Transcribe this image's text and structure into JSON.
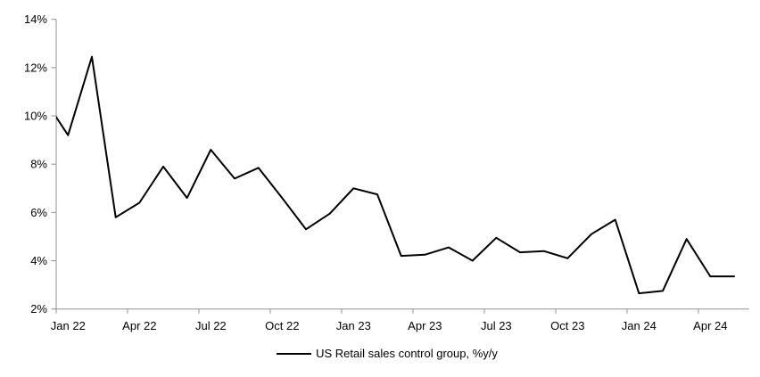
{
  "chart_data": {
    "type": "line",
    "title": "",
    "xlabel": "",
    "ylabel": "",
    "y_unit": "%",
    "legend_label": "US Retail sales control group, %y/y",
    "legend_position": "bottom-center",
    "grid": false,
    "series_color": "#000000",
    "axis_color": "#909090",
    "ylim": [
      2,
      14
    ],
    "y_tick_step": 2,
    "y_tick_labels": [
      "2%",
      "4%",
      "6%",
      "8%",
      "10%",
      "12%",
      "14%"
    ],
    "x_tick_labels": [
      "Jan 22",
      "Apr 22",
      "Jul 22",
      "Oct 22",
      "Jan 23",
      "Apr 23",
      "Jul 23",
      "Oct 23",
      "Jan 24",
      "Apr 24"
    ],
    "x_tick_month_indices": [
      1,
      4,
      7,
      10,
      13,
      16,
      19,
      22,
      25,
      28
    ],
    "x": [
      "Dec 21",
      "Jan 22",
      "Feb 22",
      "Mar 22",
      "Apr 22",
      "May 22",
      "Jun 22",
      "Jul 22",
      "Aug 22",
      "Sep 22",
      "Oct 22",
      "Nov 22",
      "Dec 22",
      "Jan 23",
      "Feb 23",
      "Mar 23",
      "Apr 23",
      "May 23",
      "Jun 23",
      "Jul 23",
      "Aug 23",
      "Sep 23",
      "Oct 23",
      "Nov 23",
      "Dec 23",
      "Jan 24",
      "Feb 24",
      "Mar 24",
      "Apr 24",
      "May 24"
    ],
    "values": [
      10.7,
      9.2,
      12.45,
      5.8,
      6.4,
      7.9,
      6.6,
      8.6,
      7.4,
      7.85,
      6.6,
      5.3,
      5.95,
      7.0,
      6.75,
      4.2,
      4.25,
      4.55,
      4.0,
      4.95,
      4.35,
      4.4,
      4.1,
      5.1,
      5.7,
      2.65,
      2.75,
      4.9,
      3.35,
      3.35
    ],
    "note": "First point (Dec 21) lies left of the plot area, so the line is clipped at the y-axis and enters at ~9.95%."
  }
}
